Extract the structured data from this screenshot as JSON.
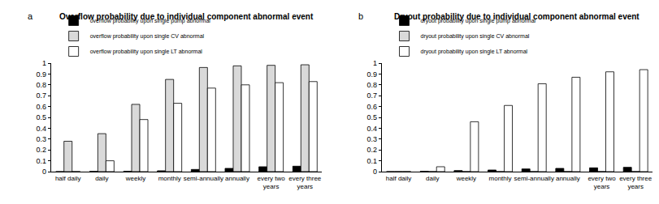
{
  "chart_data": [
    {
      "type": "bar",
      "annotations": [
        "a"
      ],
      "title": "Overflow probability due to individual component abnormal event",
      "categories": [
        "half daily",
        "daily",
        "weekly",
        "monthly",
        "semi-annually",
        "annually",
        "every two years",
        "every three years"
      ],
      "series": [
        {
          "name": "overflow probability upon single pump abnormal",
          "color": "#000000",
          "values": [
            0,
            0.002,
            0.003,
            0.008,
            0.02,
            0.03,
            0.045,
            0.05
          ]
        },
        {
          "name": "overflow probability upon single CV abnormal",
          "color": "#d9d9d9",
          "values": [
            0.28,
            0.35,
            0.62,
            0.85,
            0.96,
            0.975,
            0.98,
            0.985
          ]
        },
        {
          "name": "overflow probability upon single LT abnormal",
          "color": "#ffffff",
          "values": [
            0,
            0.1,
            0.48,
            0.63,
            0.77,
            0.8,
            0.82,
            0.83
          ]
        }
      ],
      "ylim": [
        0,
        1
      ],
      "yticks": [
        0,
        0.1,
        0.2,
        0.3,
        0.4,
        0.5,
        0.6,
        0.7,
        0.8,
        0.9,
        1
      ],
      "grid": false,
      "legend": "top-left"
    },
    {
      "type": "bar",
      "annotations": [
        "b"
      ],
      "title": "Dryout probability due to individual component abnormal event",
      "categories": [
        "half daily",
        "daily",
        "weekly",
        "monthly",
        "semi-annually",
        "annually",
        "every two years",
        "every three years"
      ],
      "series": [
        {
          "name": "dryout probability upon single pump abnormal",
          "color": "#000000",
          "values": [
            0,
            0.003,
            0.01,
            0.015,
            0.025,
            0.03,
            0.035,
            0.04
          ]
        },
        {
          "name": "dryout probability upon single CV abnormal",
          "color": "#d9d9d9",
          "values": [
            0,
            0,
            0,
            0,
            0,
            0,
            0,
            0
          ]
        },
        {
          "name": "dryout probability upon single LT abnormal",
          "color": "#ffffff",
          "values": [
            0,
            0.045,
            0.46,
            0.61,
            0.81,
            0.87,
            0.92,
            0.94
          ]
        }
      ],
      "ylim": [
        0,
        1
      ],
      "yticks": [
        0,
        0.1,
        0.2,
        0.3,
        0.4,
        0.5,
        0.6,
        0.7,
        0.8,
        0.9,
        1
      ],
      "grid": false,
      "legend": "top-left"
    }
  ]
}
